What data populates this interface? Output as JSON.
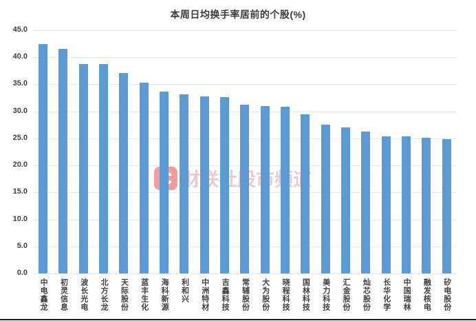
{
  "chart_data": {
    "type": "bar",
    "title": "本周日均换手率居前的个股(%)",
    "categories": [
      "中电鑫龙",
      "初灵信息",
      "波长光电",
      "北方长龙",
      "天际股份",
      "蓝丰生化",
      "海科新源",
      "利和兴",
      "中洲特材",
      "吉鑫科技",
      "常辅股份",
      "大为股份",
      "晓程科技",
      "国林科技",
      "美力科技",
      "汇金股份",
      "灿芯股份",
      "长华化学",
      "中国瑞林",
      "融发核电",
      "矽电股份"
    ],
    "values": [
      42.4,
      41.6,
      38.8,
      38.7,
      37.1,
      35.3,
      33.6,
      33.1,
      32.8,
      32.7,
      31.2,
      31.0,
      30.8,
      29.4,
      27.5,
      27.0,
      26.3,
      25.4,
      25.4,
      25.1,
      24.8
    ],
    "xlabel": "",
    "ylabel": "",
    "ylim": [
      0,
      45
    ],
    "y_tick_step": 5,
    "y_ticks": [
      "45.0",
      "40.0",
      "35.0",
      "30.0",
      "25.0",
      "20.0",
      "15.0",
      "10.0",
      "5.0",
      "0.0"
    ],
    "grid": true,
    "legend_position": "none",
    "bar_color": "#5B9BD5",
    "axis_text_color": "#3f3f3f",
    "gridline_color": "#e9e9e9"
  },
  "watermark": {
    "logo_letter": "C",
    "text": "财联社股市频道",
    "logo_color": "#f59c9c",
    "text_color": "#eccaca"
  }
}
